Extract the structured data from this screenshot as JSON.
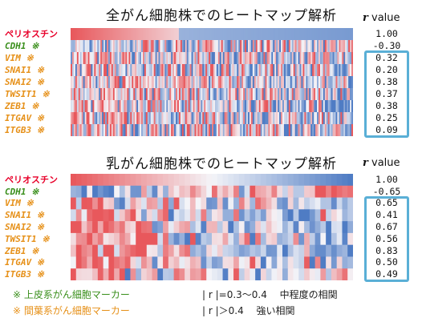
{
  "colors": {
    "periostin": "#e8002a",
    "epithelial": "#3a8f1c",
    "mesenchymal": "#e69018",
    "box": "#5aafd6",
    "high": "#e8585c",
    "low": "#4f7cc4",
    "mid": "#f4f4f8"
  },
  "header": {
    "r_label_r": "r",
    "r_label_value": "value"
  },
  "chart_data": [
    {
      "type": "heatmap",
      "title": "全がん細胞株でのヒートマップ解析",
      "rows": [
        "ペリオスチン",
        "CDH1 ※",
        "VIM ※",
        "SNAI1 ※",
        "SNAI2 ※",
        "TWSIT1 ※",
        "ZEB1 ※",
        "ITGAV ※",
        "ITGB3 ※"
      ],
      "row_groups": [
        "periostin",
        "epithelial",
        "mesenchymal",
        "mesenchymal",
        "mesenchymal",
        "mesenchymal",
        "mesenchymal",
        "mesenchymal",
        "mesenchymal"
      ],
      "r_values": [
        "1.00",
        "-0.30",
        "0.32",
        "0.20",
        "0.38",
        "0.37",
        "0.38",
        "0.25",
        "0.09"
      ],
      "r_numeric": [
        1.0,
        -0.3,
        0.32,
        0.2,
        0.38,
        0.37,
        0.38,
        0.25,
        0.09
      ],
      "columns": 180,
      "sorted_by": "ペリオスチン",
      "boxed_rows": [
        2,
        8
      ]
    },
    {
      "type": "heatmap",
      "title": "乳がん細胞株でのヒートマップ解析",
      "rows": [
        "ペリオスチン",
        "CDH1 ※",
        "VIM ※",
        "SNAI1 ※",
        "SNAI2 ※",
        "TWSIT1 ※",
        "ZEB1 ※",
        "ITGAV ※",
        "ITGB3 ※"
      ],
      "row_groups": [
        "periostin",
        "epithelial",
        "mesenchymal",
        "mesenchymal",
        "mesenchymal",
        "mesenchymal",
        "mesenchymal",
        "mesenchymal",
        "mesenchymal"
      ],
      "r_values": [
        "1.00",
        "-0.65",
        "0.65",
        "0.41",
        "0.67",
        "0.56",
        "0.83",
        "0.50",
        "0.49"
      ],
      "r_numeric": [
        1.0,
        -0.65,
        0.65,
        0.41,
        0.67,
        0.56,
        0.83,
        0.5,
        0.49
      ],
      "columns": 52,
      "sorted_by": "ペリオスチン",
      "boxed_rows": [
        2,
        8
      ]
    }
  ],
  "legend": {
    "epithelial": "※ 上皮系がん細胞マーカー",
    "mesenchymal": "※ 間葉系がん細胞マーカー",
    "moderate": "| r |=0.3～0.4　 中程度の相関",
    "strong": "| r |＞0.4　 強い相関"
  }
}
